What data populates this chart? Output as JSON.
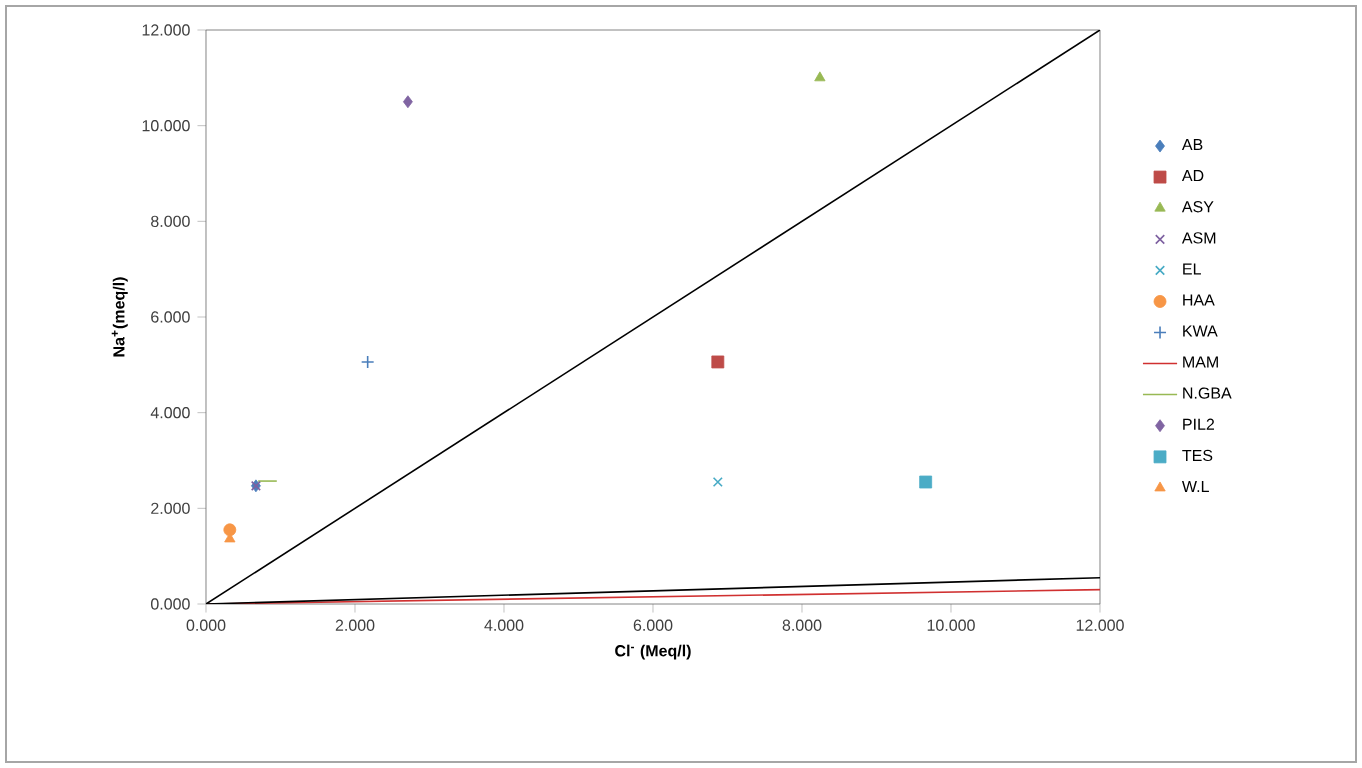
{
  "chart_data": {
    "type": "scatter",
    "xlabel": "Cl$^{-}$ (Meq/l)",
    "ylabel": "Na$^{+}$(meq/l)",
    "xlim": [
      0,
      12
    ],
    "ylim": [
      0,
      12
    ],
    "xticks": [
      {
        "value": 0,
        "label": "0.000"
      },
      {
        "value": 2,
        "label": "2.000"
      },
      {
        "value": 4,
        "label": "4.000"
      },
      {
        "value": 6,
        "label": "6.000"
      },
      {
        "value": 8,
        "label": "8.000"
      },
      {
        "value": 10,
        "label": "10.000"
      },
      {
        "value": 12,
        "label": "12.000"
      }
    ],
    "yticks": [
      {
        "value": 0,
        "label": "0.000"
      },
      {
        "value": 2,
        "label": "2.000"
      },
      {
        "value": 4,
        "label": "4.000"
      },
      {
        "value": 6,
        "label": "6.000"
      },
      {
        "value": 8,
        "label": "8.000"
      },
      {
        "value": 10,
        "label": "10.000"
      },
      {
        "value": 12,
        "label": "12.000"
      }
    ],
    "grid": false,
    "legend": "right",
    "series": [
      {
        "name": "AB",
        "color": "#4a7ebb",
        "marker": "diamond",
        "x": [
          0.67
        ],
        "values": [
          2.47
        ]
      },
      {
        "name": "AD",
        "color": "#be4b48",
        "marker": "square",
        "x": [
          6.87
        ],
        "values": [
          5.06
        ]
      },
      {
        "name": "ASY",
        "color": "#98b954",
        "marker": "triangle",
        "x": [
          8.24
        ],
        "values": [
          11.0
        ]
      },
      {
        "name": "ASM",
        "color": "#7d60a0",
        "marker": "cross",
        "x": [
          0.67
        ],
        "values": [
          2.47
        ]
      },
      {
        "name": "EL",
        "color": "#46aac5",
        "marker": "cross",
        "x": [
          6.87
        ],
        "values": [
          2.55
        ]
      },
      {
        "name": "HAA",
        "color": "#f79646",
        "marker": "circle",
        "x": [
          0.32
        ],
        "values": [
          1.55
        ]
      },
      {
        "name": "KWA",
        "color": "#4a7ebb",
        "marker": "plus",
        "x": [
          2.17
        ],
        "values": [
          5.06
        ]
      },
      {
        "name": "MAM",
        "type": "line",
        "color": "#d03030",
        "marker": "none",
        "x": [
          0,
          12
        ],
        "values": [
          0,
          0.3
        ]
      },
      {
        "name": "N.GBA",
        "type": "line",
        "color": "#98b954",
        "marker": "none",
        "x": [
          0.7,
          0.95
        ],
        "values": [
          2.57,
          2.57
        ]
      },
      {
        "name": "PIL2",
        "color": "#8064a2",
        "marker": "diamond",
        "x": [
          2.71
        ],
        "values": [
          10.5
        ]
      },
      {
        "name": "TES",
        "color": "#4bacc6",
        "marker": "square",
        "x": [
          9.66
        ],
        "values": [
          2.55
        ]
      },
      {
        "name": "W.L",
        "color": "#f79646",
        "marker": "triangle",
        "x": [
          0.32
        ],
        "values": [
          1.36
        ]
      },
      {
        "type": "line",
        "color": "#000000",
        "marker": "none",
        "x": [
          0,
          12
        ],
        "values": [
          0,
          12
        ]
      },
      {
        "type": "line",
        "color": "#000000",
        "marker": "none",
        "x": [
          0,
          12
        ],
        "values": [
          0,
          0.55
        ]
      }
    ]
  }
}
